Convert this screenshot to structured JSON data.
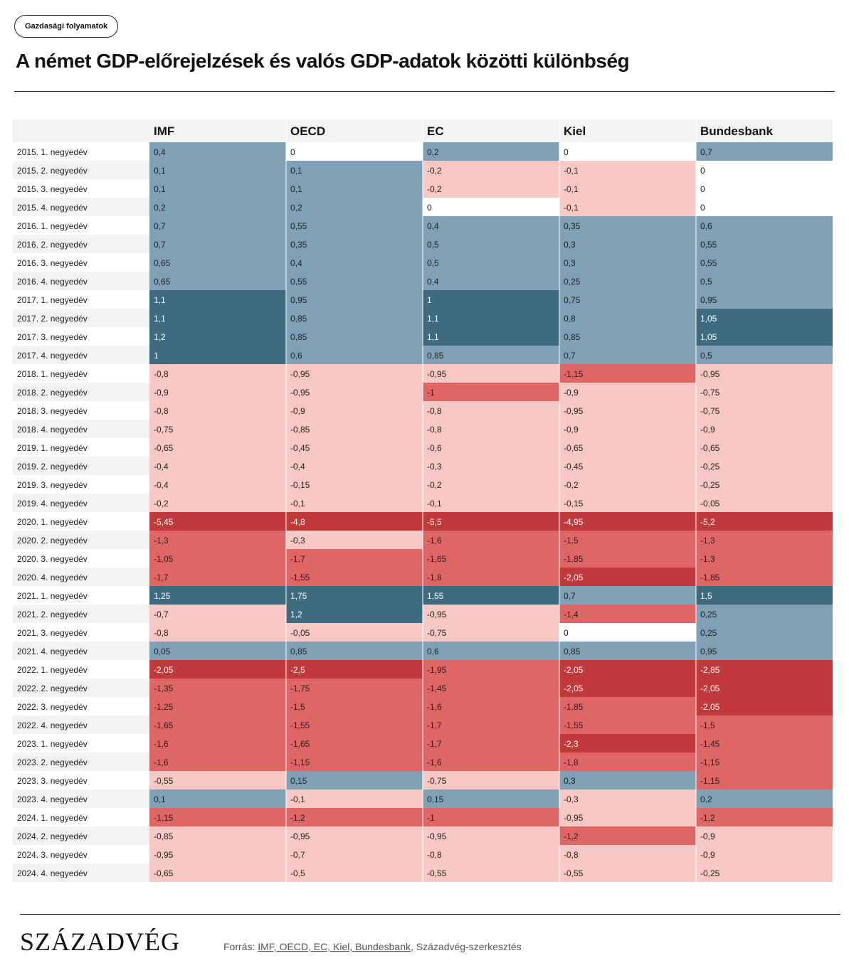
{
  "tag": "Gazdasági folyamatok",
  "title": "A német GDP-előrejelzések és valós GDP-adatok közötti különbség",
  "footer": {
    "logo": "SZÁZADVÉG",
    "source_prefix": "Forrás: ",
    "source_links": "IMF, OECD, EC, Kiel, Bundesbank",
    "source_suffix": ", Századvég-szerkesztés"
  },
  "colors": {
    "header_bg": "#f2f2f2",
    "dark_red": "#c0393b",
    "mid_red": "#e06565",
    "light_red": "#f7c8c4",
    "zero": "#ffffff",
    "light_blue": "#7fa0b5",
    "dark_blue": "#3f6b80"
  },
  "chart_data": {
    "type": "heatmap",
    "columns": [
      "IMF",
      "OECD",
      "EC",
      "Kiel",
      "Bundesbank"
    ],
    "rows": [
      {
        "label": "2015. 1. negyedév",
        "values": [
          "0,4",
          "0",
          "0,2",
          "0",
          "0,7"
        ]
      },
      {
        "label": "2015. 2. negyedév",
        "values": [
          "0,1",
          "0,1",
          "-0,2",
          "-0,1",
          "0"
        ]
      },
      {
        "label": "2015. 3. negyedév",
        "values": [
          "0,1",
          "0,1",
          "-0,2",
          "-0,1",
          "0"
        ]
      },
      {
        "label": "2015. 4. negyedév",
        "values": [
          "0,2",
          "0,2",
          "0",
          "-0,1",
          "0"
        ]
      },
      {
        "label": "2016. 1. negyedév",
        "values": [
          "0,7",
          "0,55",
          "0,4",
          "0,35",
          "0,6"
        ]
      },
      {
        "label": "2016. 2. negyedév",
        "values": [
          "0,7",
          "0,35",
          "0,5",
          "0,3",
          "0,55"
        ]
      },
      {
        "label": "2016. 3. negyedév",
        "values": [
          "0,65",
          "0,4",
          "0,5",
          "0,3",
          "0,55"
        ]
      },
      {
        "label": "2016. 4. negyedév",
        "values": [
          "0,65",
          "0,55",
          "0,4",
          "0,25",
          "0,5"
        ]
      },
      {
        "label": "2017. 1. negyedév",
        "values": [
          "1,1",
          "0,95",
          "1",
          "0,75",
          "0,95"
        ]
      },
      {
        "label": "2017. 2. negyedév",
        "values": [
          "1,1",
          "0,85",
          "1,1",
          "0,8",
          "1,05"
        ]
      },
      {
        "label": "2017. 3. negyedév",
        "values": [
          "1,2",
          "0,85",
          "1,1",
          "0,85",
          "1,05"
        ]
      },
      {
        "label": "2017. 4. negyedév",
        "values": [
          "1",
          "0,6",
          "0,85",
          "0,7",
          "0,5"
        ]
      },
      {
        "label": "2018. 1. negyedév",
        "values": [
          "-0,8",
          "-0,95",
          "-0,95",
          "-1,15",
          "-0,95"
        ]
      },
      {
        "label": "2018. 2. negyedév",
        "values": [
          "-0,9",
          "-0,95",
          "-1",
          "-0,9",
          "-0,75"
        ]
      },
      {
        "label": "2018. 3. negyedév",
        "values": [
          "-0,8",
          "-0,9",
          "-0,8",
          "-0,95",
          "-0,75"
        ]
      },
      {
        "label": "2018. 4. negyedév",
        "values": [
          "-0,75",
          "-0,85",
          "-0,8",
          "-0,9",
          "-0,9"
        ]
      },
      {
        "label": "2019. 1. negyedév",
        "values": [
          "-0,65",
          "-0,45",
          "-0,6",
          "-0,65",
          "-0,65"
        ]
      },
      {
        "label": "2019. 2. negyedév",
        "values": [
          "-0,4",
          "-0,4",
          "-0,3",
          "-0,45",
          "-0,25"
        ]
      },
      {
        "label": "2019. 3. negyedév",
        "values": [
          "-0,4",
          "-0,15",
          "-0,2",
          "-0,2",
          "-0,25"
        ]
      },
      {
        "label": "2019. 4. negyedév",
        "values": [
          "-0,2",
          "-0,1",
          "-0,1",
          "-0,15",
          "-0,05"
        ]
      },
      {
        "label": "2020. 1. negyedév",
        "values": [
          "-5,45",
          "-4,8",
          "-5,5",
          "-4,95",
          "-5,2"
        ]
      },
      {
        "label": "2020. 2. negyedév",
        "values": [
          "-1,3",
          "-0,3",
          "-1,6",
          "-1,5",
          "-1,3"
        ]
      },
      {
        "label": "2020. 3. negyedév",
        "values": [
          "-1,05",
          "-1,7",
          "-1,65",
          "-1,85",
          "-1,3"
        ]
      },
      {
        "label": "2020. 4. negyedév",
        "values": [
          "-1,7",
          "-1,55",
          "-1,8",
          "-2,05",
          "-1,85"
        ]
      },
      {
        "label": "2021. 1. negyedév",
        "values": [
          "1,25",
          "1,75",
          "1,55",
          "0,7",
          "1,5"
        ]
      },
      {
        "label": "2021. 2. negyedév",
        "values": [
          "-0,7",
          "1,2",
          "-0,95",
          "-1,4",
          "0,25"
        ]
      },
      {
        "label": "2021. 3. negyedév",
        "values": [
          "-0,8",
          "-0,05",
          "-0,75",
          "0",
          "0,25"
        ]
      },
      {
        "label": "2021. 4. negyedév",
        "values": [
          "0,05",
          "0,85",
          "0,6",
          "0,85",
          "0,95"
        ]
      },
      {
        "label": "2022. 1. negyedév",
        "values": [
          "-2,05",
          "-2,5",
          "-1,95",
          "-2,05",
          "-2,85"
        ]
      },
      {
        "label": "2022. 2. negyedév",
        "values": [
          "-1,35",
          "-1,75",
          "-1,45",
          "-2,05",
          "-2,05"
        ]
      },
      {
        "label": "2022. 3. negyedév",
        "values": [
          "-1,25",
          "-1,5",
          "-1,6",
          "-1,85",
          "-2,05"
        ]
      },
      {
        "label": "2022. 4. negyedév",
        "values": [
          "-1,65",
          "-1,55",
          "-1,7",
          "-1,55",
          "-1,5"
        ]
      },
      {
        "label": "2023. 1. negyedév",
        "values": [
          "-1,6",
          "-1,65",
          "-1,7",
          "-2,3",
          "-1,45"
        ]
      },
      {
        "label": "2023. 2. negyedév",
        "values": [
          "-1,6",
          "-1,15",
          "-1,6",
          "-1,8",
          "-1,15"
        ]
      },
      {
        "label": "2023. 3. negyedév",
        "values": [
          "-0,55",
          "0,15",
          "-0,75",
          "0,3",
          "-1,15"
        ]
      },
      {
        "label": "2023. 4. negyedév",
        "values": [
          "0,1",
          "-0,1",
          "0,15",
          "-0,3",
          "0,2"
        ]
      },
      {
        "label": "2024. 1. negyedév",
        "values": [
          "-1,15",
          "-1,2",
          "-1",
          "-0,95",
          "-1,2"
        ]
      },
      {
        "label": "2024. 2. negyedév",
        "values": [
          "-0,85",
          "-0,95",
          "-0,95",
          "-1,2",
          "-0,9"
        ]
      },
      {
        "label": "2024. 3. negyedév",
        "values": [
          "-0,95",
          "-0,7",
          "-0,8",
          "-0,8",
          "-0,9"
        ]
      },
      {
        "label": "2024. 4. negyedév",
        "values": [
          "-0,65",
          "-0,5",
          "-0,55",
          "-0,55",
          "-0,25"
        ]
      }
    ]
  }
}
